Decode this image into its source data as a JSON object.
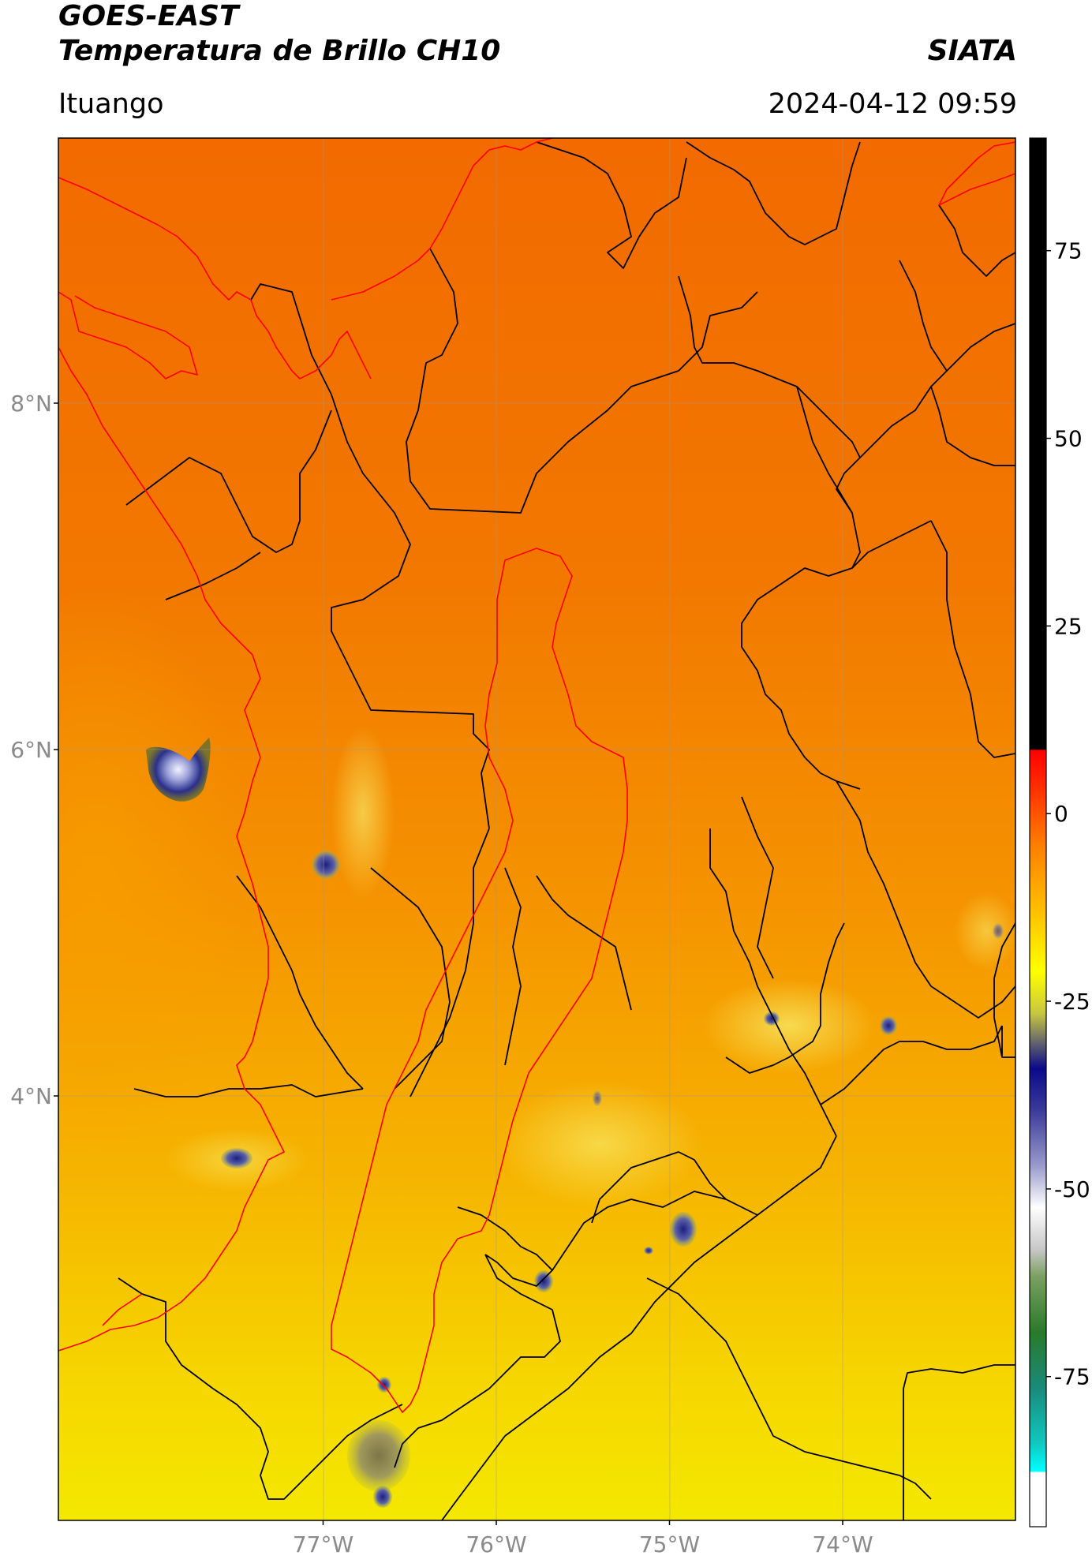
{
  "header": {
    "title_line1": "GOES-EAST",
    "title_line2": "Temperatura de Brillo CH10",
    "org": "SIATA",
    "location": "Ituango",
    "datetime": "2024-04-12 09:59"
  },
  "map": {
    "lon_range": [
      -78.5,
      -73.0
    ],
    "lat_range": [
      1.0,
      9.0
    ],
    "lat_ticks": [
      {
        "value": 8,
        "label": "8°N"
      },
      {
        "value": 6,
        "label": "6°N"
      },
      {
        "value": 4,
        "label": "4°N"
      }
    ],
    "lon_ticks": [
      {
        "value": -77,
        "label": "77°W"
      },
      {
        "value": -76,
        "label": "76°W"
      },
      {
        "value": -75,
        "label": "75°W"
      },
      {
        "value": -74,
        "label": "74°W"
      }
    ],
    "colors": {
      "north": "#f26b00",
      "middle": "#f59a00",
      "south": "#f5dc00",
      "cold_cloud": "#1a1f7a",
      "basin_outline": "#ff0000",
      "border": "#000000"
    }
  },
  "colorbar": {
    "ticks": [
      {
        "value": 75,
        "label": "75"
      },
      {
        "value": 50,
        "label": "50"
      },
      {
        "value": 25,
        "label": "25"
      },
      {
        "value": 0,
        "label": "0"
      },
      {
        "value": -25,
        "label": "-25"
      },
      {
        "value": -50,
        "label": "-50"
      },
      {
        "value": -75,
        "label": "-75"
      }
    ],
    "range": [
      -95,
      90
    ]
  }
}
